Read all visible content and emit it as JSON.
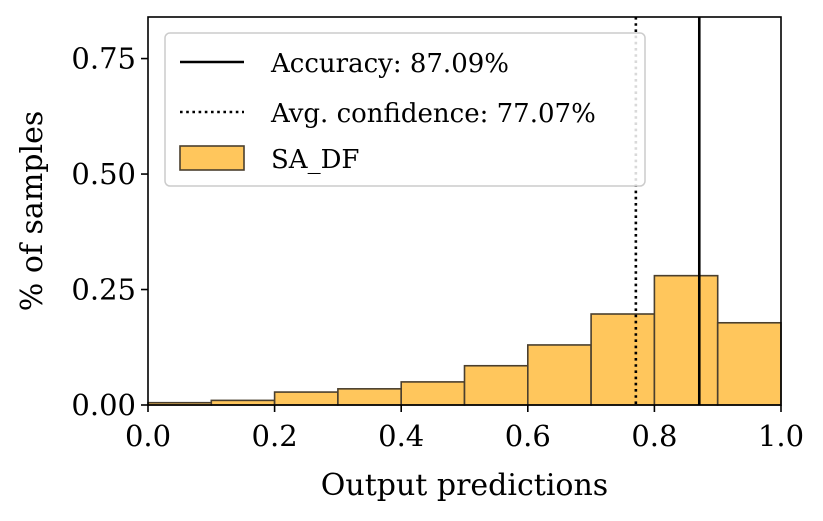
{
  "chart_data": {
    "type": "bar",
    "title": "",
    "xlabel": "Output predictions",
    "ylabel": "% of samples",
    "xlim": [
      0.0,
      1.0
    ],
    "ylim": [
      0.0,
      0.84
    ],
    "x_ticks": [
      0.0,
      0.2,
      0.4,
      0.6,
      0.8,
      1.0
    ],
    "x_tick_labels": [
      "0.0",
      "0.2",
      "0.4",
      "0.6",
      "0.8",
      "1.0"
    ],
    "y_ticks": [
      0.0,
      0.25,
      0.5,
      0.75
    ],
    "y_tick_labels": [
      "0.00",
      "0.25",
      "0.50",
      "0.75"
    ],
    "bins": [
      {
        "start": 0.0,
        "end": 0.1,
        "value": 0.005
      },
      {
        "start": 0.1,
        "end": 0.2,
        "value": 0.01
      },
      {
        "start": 0.2,
        "end": 0.3,
        "value": 0.028
      },
      {
        "start": 0.3,
        "end": 0.4,
        "value": 0.035
      },
      {
        "start": 0.4,
        "end": 0.5,
        "value": 0.05
      },
      {
        "start": 0.5,
        "end": 0.6,
        "value": 0.085
      },
      {
        "start": 0.6,
        "end": 0.7,
        "value": 0.13
      },
      {
        "start": 0.7,
        "end": 0.8,
        "value": 0.197
      },
      {
        "start": 0.8,
        "end": 0.9,
        "value": 0.28
      },
      {
        "start": 0.9,
        "end": 1.0,
        "value": 0.178
      }
    ],
    "series_name": "SA_DF",
    "reference_lines": [
      {
        "name": "Accuracy",
        "label": "Accuracy: 87.09%",
        "x": 0.8709,
        "style": "solid"
      },
      {
        "name": "Avg. confidence",
        "label": "Avg. confidence: 77.07%",
        "x": 0.7707,
        "style": "dotted"
      }
    ],
    "legend": {
      "position": "top-left",
      "entries": [
        {
          "label": "Accuracy: 87.09%",
          "kind": "line",
          "style": "solid"
        },
        {
          "label": "Avg. confidence: 77.07%",
          "kind": "line",
          "style": "dotted"
        },
        {
          "label": "SA_DF",
          "kind": "patch"
        }
      ]
    },
    "colors": {
      "bar_fill": "#ffc65c",
      "bar_edge": "#4a3f2e",
      "line": "#000000"
    }
  }
}
